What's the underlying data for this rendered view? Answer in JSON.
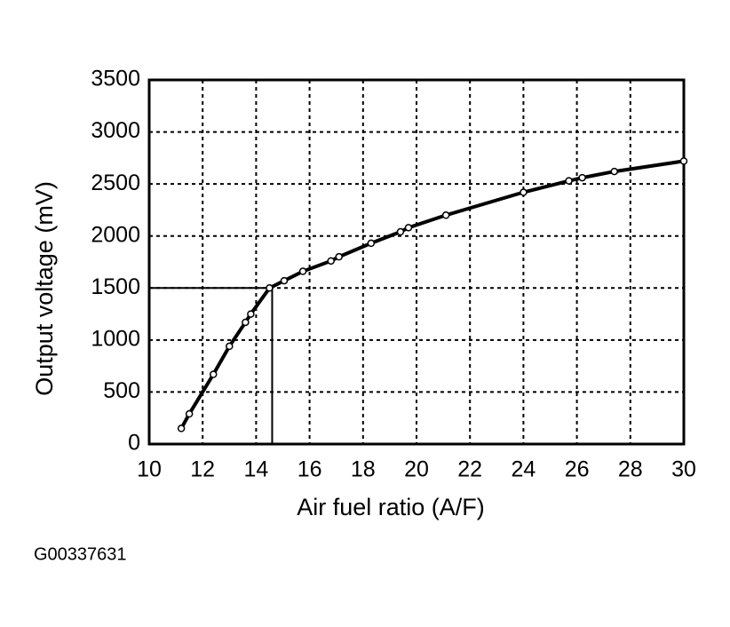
{
  "chart_data": {
    "type": "line",
    "xlabel": "Air fuel ratio (A/F)",
    "ylabel": "Output voltage (mV)",
    "note": "G00337631",
    "x": [
      11.2,
      11.5,
      12.4,
      13.0,
      13.6,
      13.8,
      14.5,
      15.05,
      15.75,
      16.8,
      17.1,
      18.3,
      19.4,
      19.7,
      21.1,
      24.0,
      25.7,
      26.2,
      27.4,
      30
    ],
    "values": [
      150,
      290,
      670,
      940,
      1170,
      1250,
      1500,
      1570,
      1660,
      1760,
      1800,
      1930,
      2040,
      2080,
      2200,
      2420,
      2530,
      2560,
      2620,
      2720
    ],
    "color": "#000000",
    "reference": {
      "x": 14.6,
      "y": 1500
    },
    "xlim": [
      10,
      30
    ],
    "xticks": [
      10,
      12,
      14,
      16,
      18,
      20,
      22,
      24,
      26,
      28,
      30
    ],
    "ylim": [
      0,
      3500
    ],
    "yticks": [
      0,
      500,
      1000,
      1500,
      2000,
      2500,
      3000,
      3500
    ],
    "grid": true
  }
}
